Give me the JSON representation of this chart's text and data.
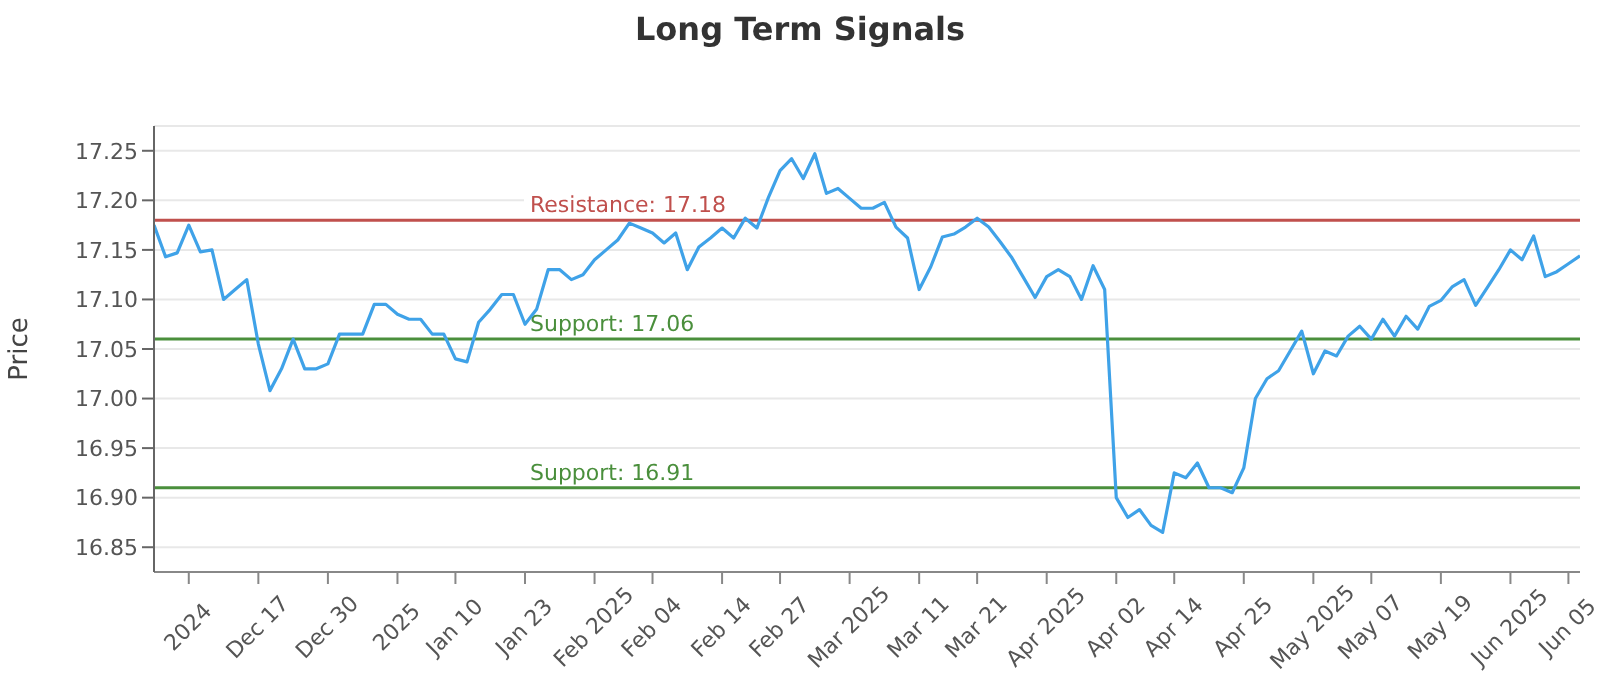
{
  "chart_data": {
    "type": "line",
    "title": "Long Term Signals",
    "ylabel": "Price",
    "categories": [
      null,
      null,
      null,
      "2024",
      null,
      null,
      null,
      null,
      null,
      "Dec 17",
      null,
      null,
      null,
      null,
      null,
      "Dec 30",
      null,
      null,
      null,
      null,
      null,
      "2025",
      null,
      null,
      null,
      null,
      "Jan 10",
      null,
      null,
      null,
      null,
      null,
      "Jan 23",
      null,
      null,
      null,
      null,
      null,
      "Feb 2025",
      null,
      null,
      null,
      null,
      "Feb 04",
      null,
      null,
      null,
      null,
      null,
      "Feb 14",
      null,
      null,
      null,
      null,
      "Feb 27",
      null,
      null,
      null,
      null,
      null,
      "Mar 2025",
      null,
      null,
      null,
      null,
      null,
      "Mar 11",
      null,
      null,
      null,
      null,
      "Mar 21",
      null,
      null,
      null,
      null,
      null,
      "Apr 2025",
      null,
      null,
      null,
      null,
      null,
      "Apr 02",
      null,
      null,
      null,
      null,
      "Apr 14",
      null,
      null,
      null,
      null,
      null,
      "Apr 25",
      null,
      null,
      null,
      null,
      null,
      "May 2025",
      null,
      null,
      null,
      null,
      "May 07",
      null,
      null,
      null,
      null,
      null,
      "May 19",
      null,
      null,
      null,
      null,
      null,
      "Jun 2025",
      null,
      null,
      null,
      null,
      "Jun 05",
      null
    ],
    "series": [
      {
        "color": "#3fa2e8",
        "values": [
          17.175,
          17.143,
          17.147,
          17.175,
          17.148,
          17.15,
          17.1,
          17.11,
          17.12,
          17.055,
          17.008,
          17.03,
          17.06,
          17.03,
          17.03,
          17.035,
          17.065,
          17.065,
          17.065,
          17.095,
          17.095,
          17.085,
          17.08,
          17.08,
          17.065,
          17.065,
          17.04,
          17.037,
          17.077,
          17.09,
          17.105,
          17.105,
          17.075,
          17.09,
          17.13,
          17.13,
          17.12,
          17.125,
          17.14,
          17.15,
          17.16,
          17.177,
          17.172,
          17.167,
          17.157,
          17.167,
          17.13,
          17.153,
          17.162,
          17.172,
          17.162,
          17.182,
          17.172,
          17.203,
          17.23,
          17.242,
          17.222,
          17.247,
          17.207,
          17.212,
          17.202,
          17.192,
          17.192,
          17.198,
          17.173,
          17.162,
          17.11,
          17.133,
          17.163,
          17.166,
          17.173,
          17.182,
          17.173,
          17.158,
          17.142,
          17.122,
          17.102,
          17.123,
          17.13,
          17.123,
          17.1,
          17.134,
          17.11,
          16.9,
          16.88,
          16.888,
          16.872,
          16.865,
          16.925,
          16.92,
          16.935,
          16.91,
          16.91,
          16.905,
          16.93,
          17.0,
          17.02,
          17.028,
          17.048,
          17.068,
          17.025,
          17.048,
          17.043,
          17.063,
          17.073,
          17.06,
          17.08,
          17.063,
          17.083,
          17.07,
          17.093,
          17.099,
          17.113,
          17.12,
          17.094,
          17.112,
          17.13,
          17.15,
          17.14,
          17.164,
          17.123,
          17.128,
          17.136,
          17.144
        ]
      }
    ],
    "ylim": [
      16.825,
      17.275
    ],
    "yticks": [
      16.85,
      {
        "value": 16.9,
        "label": "16.90"
      },
      16.95,
      {
        "value": 17.0,
        "label": "17.00"
      },
      17.05,
      {
        "value": 17.1,
        "label": "17.10"
      },
      17.15,
      {
        "value": 17.2,
        "label": "17.20"
      },
      17.25
    ],
    "grid": "y",
    "legend": false,
    "marker": "none",
    "line_style": "solid",
    "ref_lines": [
      {
        "axis": "y",
        "value": 17.18,
        "label": "Resistance: 17.18",
        "color": "#c0504d"
      },
      {
        "axis": "y",
        "value": 17.06,
        "label": "Support: 17.06",
        "color": "#4a8f3c"
      },
      {
        "axis": "y",
        "value": 16.91,
        "label": "Support: 16.91",
        "color": "#4a8f3c"
      }
    ]
  }
}
